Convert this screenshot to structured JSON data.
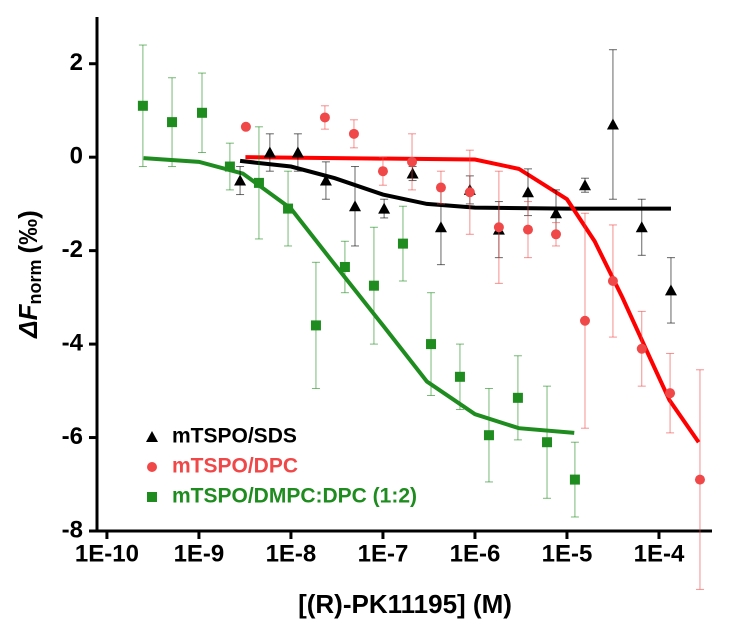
{
  "chart_data": {
    "type": "scatter",
    "x_label": "[(R)-PK11195] (M)",
    "y_label": {
      "main": "ΔF",
      "sub": "norm",
      "unit": "(‰)"
    },
    "x_scale": "log",
    "xlim": [
      7.8e-11,
      0.000377
    ],
    "xticks": [
      {
        "value": 1e-10,
        "label": "1E-10"
      },
      {
        "value": 1e-09,
        "label": "1E-9"
      },
      {
        "value": 1e-08,
        "label": "1E-8"
      },
      {
        "value": 1e-07,
        "label": "1E-7"
      },
      {
        "value": 1e-06,
        "label": "1E-6"
      },
      {
        "value": 1e-05,
        "label": "1E-5"
      },
      {
        "value": 0.0001,
        "label": "1E-4"
      }
    ],
    "ylim": [
      -8,
      3
    ],
    "yticks": [
      2,
      0,
      -2,
      -4,
      -6,
      -8
    ],
    "legend": "lower left",
    "series": [
      {
        "name": "mTSPO/SDS",
        "color": "#000000",
        "marker": "triangle",
        "x": [
          2.8e-09,
          5.9e-09,
          1.19e-08,
          2.4e-08,
          4.97e-08,
          1.03e-07,
          2.1e-07,
          4.27e-07,
          8.8e-07,
          1.82e-06,
          3.77e-06,
          7.6e-06,
          1.57e-05,
          3.16e-05,
          6.5e-05,
          0.000135
        ],
        "values": [
          -0.5,
          0.1,
          0.1,
          -0.5,
          -1.05,
          -1.1,
          -0.35,
          -1.5,
          -0.7,
          -1.55,
          -0.75,
          -1.2,
          -0.6,
          0.7,
          -1.5,
          -2.85
        ],
        "errors": [
          0.3,
          0.4,
          0.4,
          0.4,
          0.85,
          0.2,
          0.15,
          0.8,
          0.3,
          0.6,
          0.5,
          0.5,
          0.15,
          1.6,
          0.6,
          0.7
        ]
      },
      {
        "name": "mTSPO/DPC",
        "color": "#f04848",
        "marker": "circle",
        "x": [
          3.24e-09,
          2.34e-08,
          4.84e-08,
          1e-07,
          2.07e-07,
          4.27e-07,
          8.8e-07,
          1.82e-06,
          3.77e-06,
          7.6e-06,
          1.57e-05,
          3.16e-05,
          6.5e-05,
          0.000132,
          0.000279
        ],
        "values": [
          0.65,
          0.85,
          0.5,
          -0.3,
          -0.1,
          -0.65,
          -0.75,
          -1.5,
          -1.55,
          -1.65,
          -3.5,
          -2.65,
          -4.1,
          -5.05,
          -6.9
        ],
        "errors": [
          0.05,
          0.25,
          0.3,
          0.3,
          0.6,
          0.35,
          0.9,
          1.2,
          0.6,
          0.25,
          2.3,
          1.2,
          0.8,
          0.85,
          2.35
        ]
      },
      {
        "name": "mTSPO/DMPC:DPC (1:2)",
        "color": "#1e8c1e",
        "marker": "square",
        "x": [
          2.46e-10,
          5.1e-10,
          1.08e-09,
          2.17e-09,
          4.49e-09,
          9.3e-09,
          1.87e-08,
          3.86e-08,
          7.98e-08,
          1.65e-07,
          3.33e-07,
          6.87e-07,
          1.42e-06,
          2.93e-06,
          6.07e-06,
          1.22e-05
        ],
        "values": [
          1.1,
          0.75,
          0.95,
          -0.2,
          -0.55,
          -1.1,
          -3.6,
          -2.35,
          -2.75,
          -1.85,
          -4.0,
          -4.7,
          -5.95,
          -5.15,
          -6.1,
          -6.9
        ],
        "errors": [
          1.3,
          0.95,
          0.85,
          0.5,
          1.2,
          0.8,
          1.35,
          0.55,
          1.25,
          0.8,
          1.1,
          0.7,
          1.0,
          0.9,
          1.2,
          0.8
        ]
      }
    ],
    "fits": [
      {
        "color": "#000000",
        "x": [
          2.8e-09,
          1e-08,
          3e-08,
          1e-07,
          3e-07,
          1e-06,
          1e-05,
          0.000135
        ],
        "values": [
          -0.08,
          -0.2,
          -0.45,
          -0.8,
          -1.0,
          -1.08,
          -1.1,
          -1.1
        ]
      },
      {
        "color": "#ff0000",
        "x": [
          3.2e-09,
          1e-06,
          3e-06,
          1e-05,
          2e-05,
          4e-05,
          8e-05,
          0.00013,
          0.00027
        ],
        "values": [
          0,
          -0.05,
          -0.25,
          -0.9,
          -1.8,
          -3.0,
          -4.3,
          -5.2,
          -6.1
        ]
      },
      {
        "color": "#1e8c1e",
        "x": [
          2.5e-10,
          1e-09,
          3e-09,
          1e-08,
          3e-08,
          1e-07,
          3e-07,
          1e-06,
          3e-06,
          1.2e-05
        ],
        "values": [
          -0.02,
          -0.1,
          -0.35,
          -1.1,
          -2.3,
          -3.6,
          -4.8,
          -5.5,
          -5.8,
          -5.9
        ]
      }
    ]
  }
}
